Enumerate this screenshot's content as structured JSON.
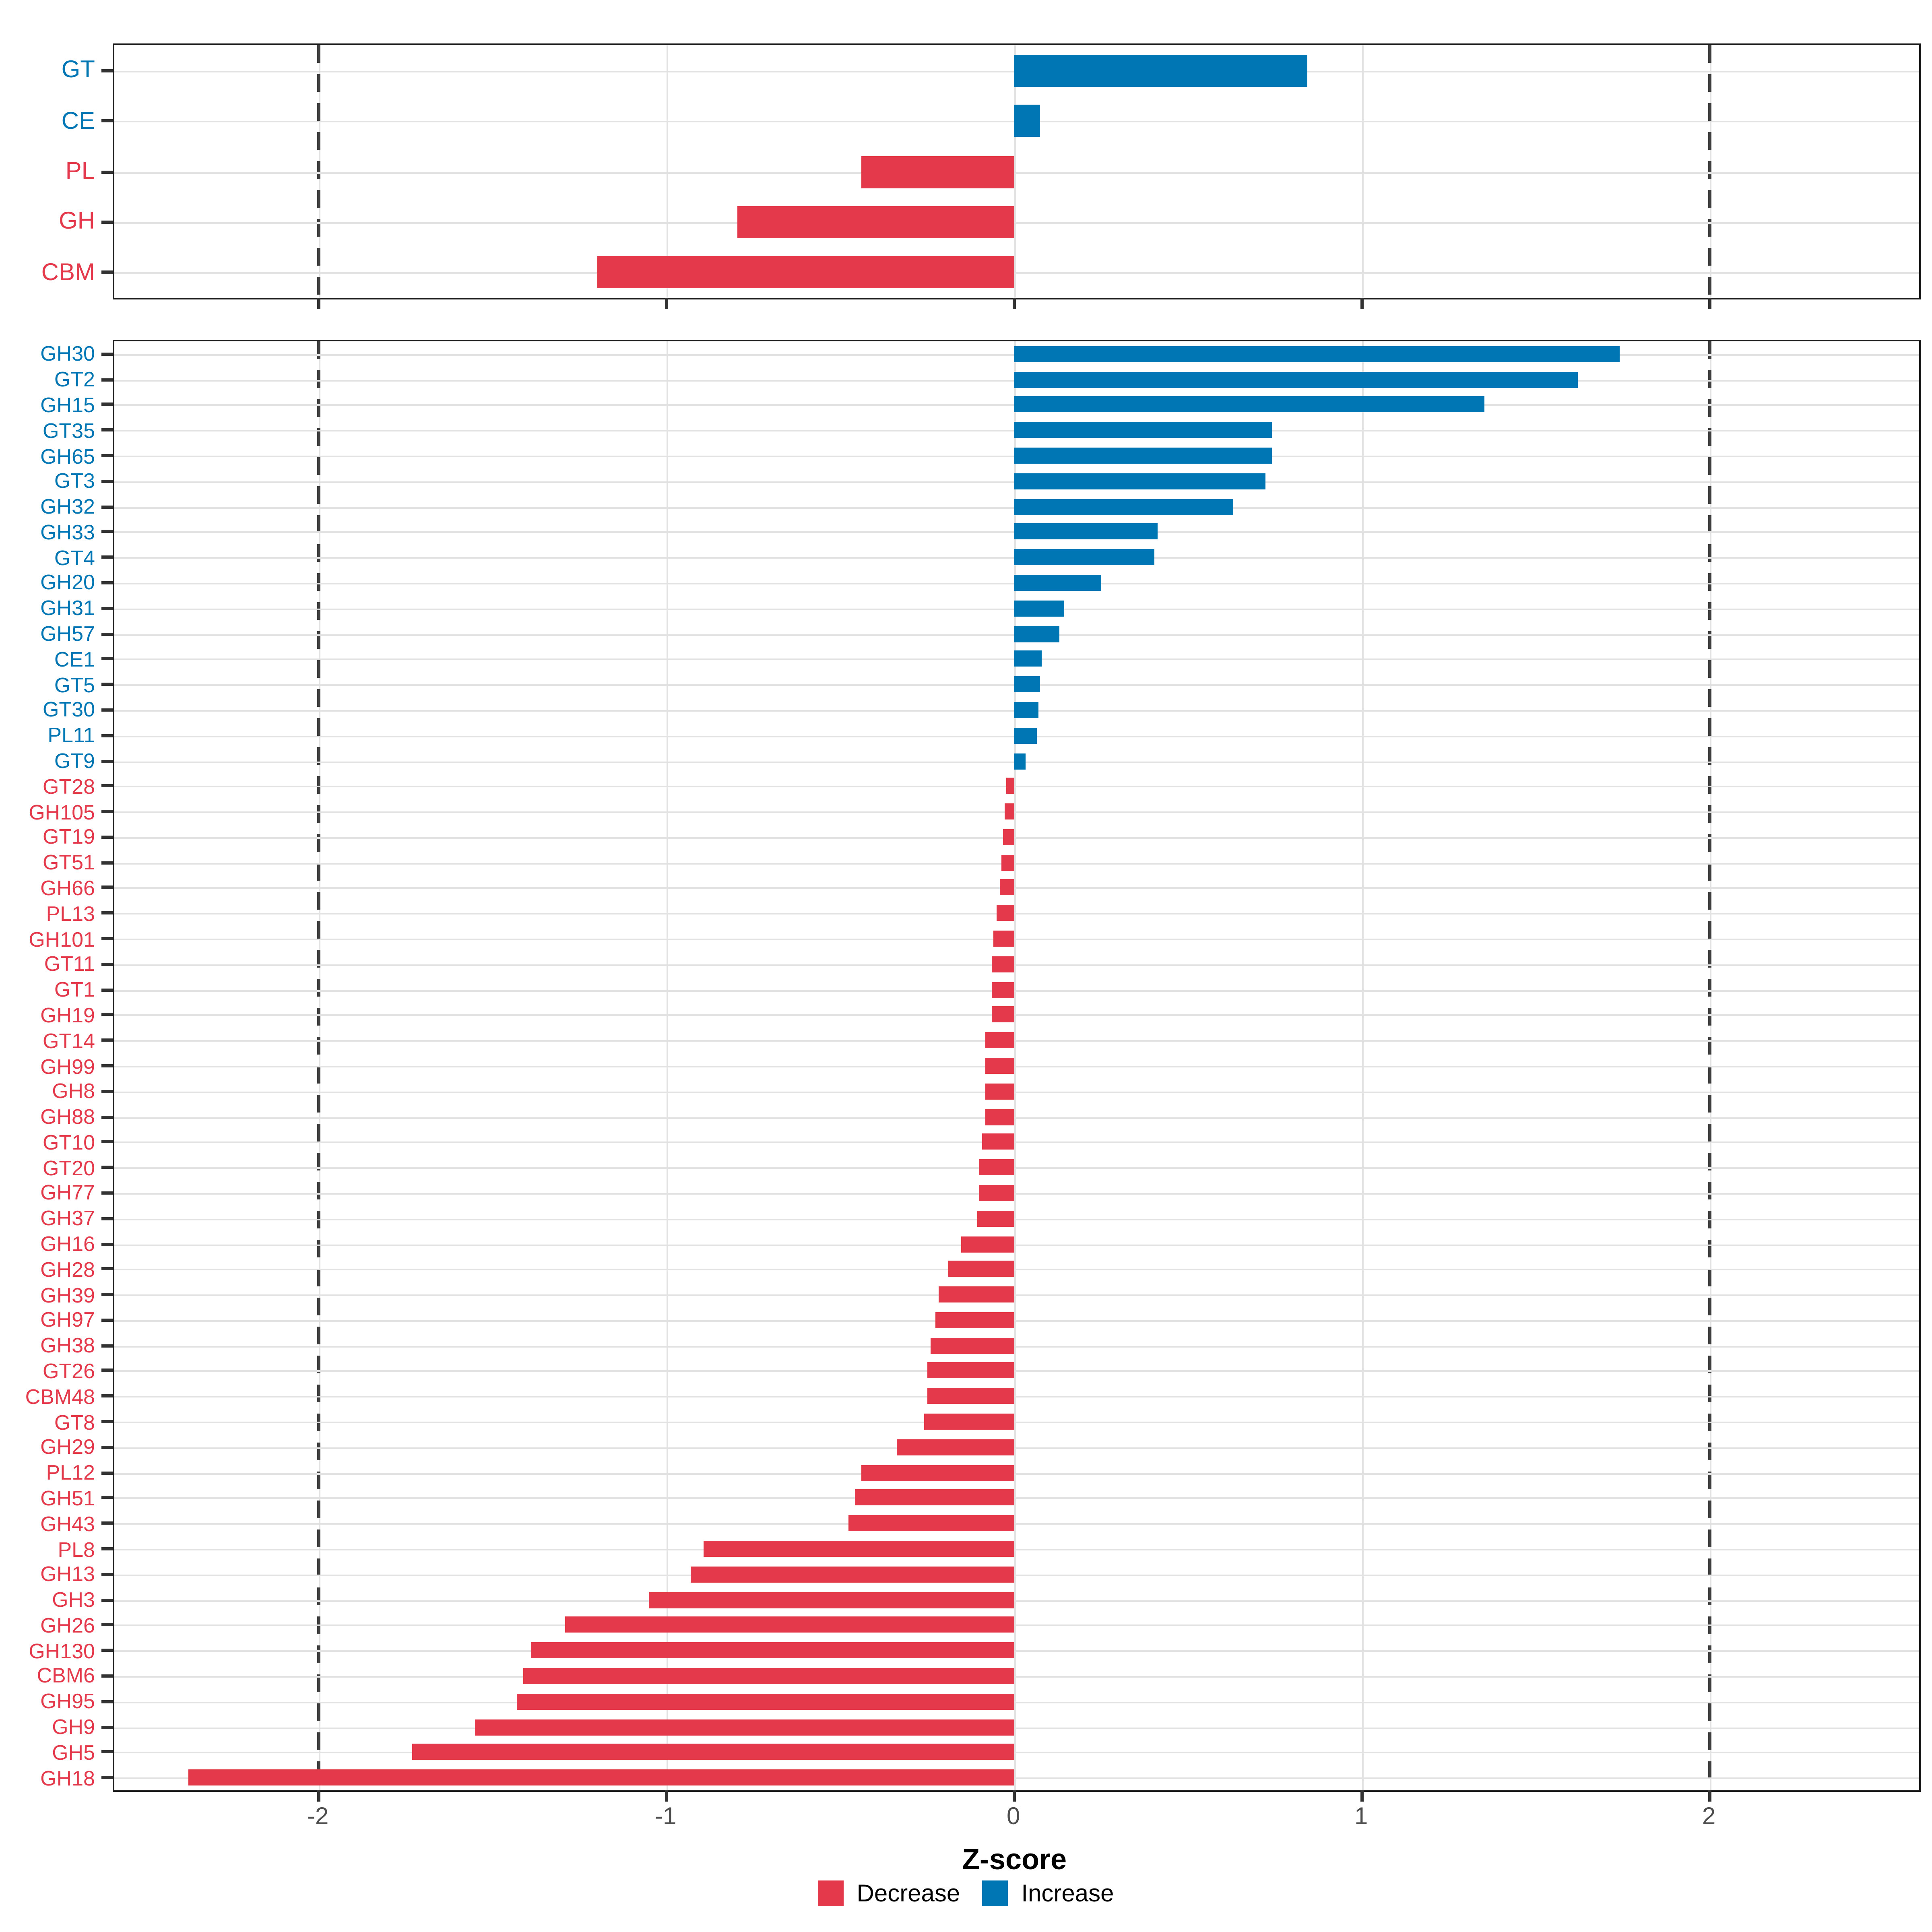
{
  "colors": {
    "increase": "#0076B5",
    "decrease": "#E4394B",
    "grid": "#E2E2E2",
    "dashed_line": "#404040",
    "panel_border": "#1A1A1A",
    "tick_label": "#4D4D4D"
  },
  "axis": {
    "title": "Z-score",
    "ticks": [
      -2,
      -1,
      0,
      1,
      2
    ],
    "tick_labels": [
      "-2",
      "-1",
      "0",
      "1",
      "2"
    ],
    "range": [
      -2.59,
      2.6
    ],
    "dashed_at": [
      -2,
      2
    ]
  },
  "legend": {
    "items": [
      {
        "label": "Decrease",
        "color_key": "decrease"
      },
      {
        "label": "Increase",
        "color_key": "increase"
      }
    ]
  },
  "chart_data": [
    {
      "type": "bar",
      "orientation": "horizontal",
      "panel": "top",
      "title": "",
      "xlabel": "Z-score",
      "ylabel": "",
      "xlim": [
        -2.59,
        2.6
      ],
      "grid": true,
      "categories": [
        "GT",
        "CE",
        "PL",
        "GH",
        "CBM"
      ],
      "values": [
        0.84,
        0.07,
        -0.44,
        -0.8,
        -1.2
      ]
    },
    {
      "type": "bar",
      "orientation": "horizontal",
      "panel": "bottom",
      "title": "",
      "xlabel": "Z-score",
      "ylabel": "",
      "xlim": [
        -2.59,
        2.6
      ],
      "grid": true,
      "categories": [
        "GH30",
        "GT2",
        "GH15",
        "GT35",
        "GH65",
        "GT3",
        "GH32",
        "GH33",
        "GT4",
        "GH20",
        "GH31",
        "GH57",
        "CE1",
        "GT5",
        "GT30",
        "PL11",
        "GT9",
        "GT28",
        "GH105",
        "GT19",
        "GT51",
        "GH66",
        "PL13",
        "GH101",
        "GT11",
        "GT1",
        "GH19",
        "GT14",
        "GH99",
        "GH8",
        "GH88",
        "GT10",
        "GT20",
        "GH77",
        "GH37",
        "GH16",
        "GH28",
        "GH39",
        "GH97",
        "GH38",
        "GT26",
        "CBM48",
        "GT8",
        "GH29",
        "PL12",
        "GH51",
        "GH43",
        "PL8",
        "GH13",
        "GH3",
        "GH26",
        "GH130",
        "CBM6",
        "GH95",
        "GH9",
        "GH5",
        "GH18"
      ],
      "values": [
        1.74,
        1.62,
        1.35,
        0.74,
        0.74,
        0.72,
        0.63,
        0.41,
        0.4,
        0.25,
        0.14,
        0.13,
        0.075,
        0.07,
        0.066,
        0.063,
        0.03,
        -0.025,
        -0.032,
        -0.033,
        -0.041,
        -0.043,
        -0.051,
        -0.064,
        -0.067,
        -0.067,
        -0.068,
        -0.083,
        -0.083,
        -0.083,
        -0.084,
        -0.096,
        -0.105,
        -0.106,
        -0.108,
        -0.157,
        -0.19,
        -0.221,
        -0.231,
        -0.243,
        -0.254,
        -0.254,
        -0.26,
        -0.338,
        -0.442,
        -0.46,
        -0.477,
        -0.894,
        -0.931,
        -1.054,
        -1.294,
        -1.389,
        -1.414,
        -1.431,
        -1.554,
        -1.732,
        -2.377
      ]
    }
  ]
}
